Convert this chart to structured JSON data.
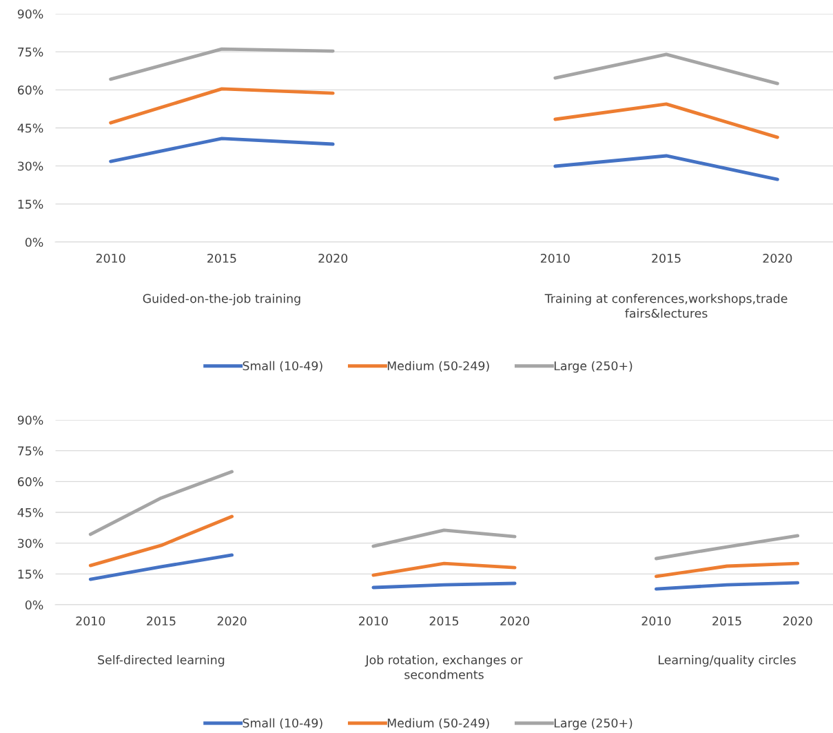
{
  "chart_data": [
    {
      "type": "line",
      "categories": [
        "2010",
        "2015",
        "2020",
        null,
        "2010",
        "2015",
        "2020"
      ],
      "series": [
        {
          "name": "Small (10-49)",
          "color": "#4472c4",
          "values": [
            31.8,
            40.8,
            38.6,
            null,
            29.9,
            34.0,
            24.7
          ]
        },
        {
          "name": "Medium (50-249)",
          "color": "#ed7d31",
          "values": [
            47.0,
            60.4,
            58.7,
            null,
            48.4,
            54.4,
            41.3
          ]
        },
        {
          "name": "Large (250+)",
          "color": "#a5a5a5",
          "values": [
            64.2,
            76.1,
            75.3,
            null,
            64.7,
            74.0,
            62.5
          ]
        }
      ],
      "ylim": [
        0,
        90
      ],
      "yticks": [
        {
          "value": 0,
          "label": "0%"
        },
        {
          "value": 15,
          "label": "15%"
        },
        {
          "value": 30,
          "label": "30%"
        },
        {
          "value": 45,
          "label": "45%"
        },
        {
          "value": 60,
          "label": "60%"
        },
        {
          "value": 75,
          "label": "75%"
        },
        {
          "value": 90,
          "label": "90%"
        }
      ],
      "annotations": [
        "Guided-on-the-job training",
        "Training at conferences,workshops,trade fairs&lectures"
      ],
      "grid": "y",
      "legend": "bottom",
      "marker": "none",
      "line_style": "solid"
    },
    {
      "type": "line",
      "categories": [
        "2010",
        "2015",
        "2020",
        null,
        "2010",
        "2015",
        "2020",
        null,
        "2010",
        "2015",
        "2020"
      ],
      "series": [
        {
          "name": "Small (10-49)",
          "color": "#4472c4",
          "values": [
            12.4,
            18.5,
            24.2,
            null,
            8.4,
            9.7,
            10.4,
            null,
            7.7,
            9.7,
            10.7
          ]
        },
        {
          "name": "Medium (50-249)",
          "color": "#ed7d31",
          "values": [
            19.1,
            28.9,
            43.0,
            null,
            14.4,
            20.1,
            18.1,
            null,
            13.8,
            18.8,
            20.1
          ]
        },
        {
          "name": "Large (250+)",
          "color": "#a5a5a5",
          "values": [
            34.3,
            52.0,
            64.8,
            null,
            28.5,
            36.3,
            33.2,
            null,
            22.5,
            28.2,
            33.6
          ]
        }
      ],
      "ylim": [
        0,
        90
      ],
      "yticks": [
        {
          "value": 0,
          "label": "0%"
        },
        {
          "value": 15,
          "label": "15%"
        },
        {
          "value": 30,
          "label": "30%"
        },
        {
          "value": 45,
          "label": "45%"
        },
        {
          "value": 60,
          "label": "60%"
        },
        {
          "value": 75,
          "label": "75%"
        },
        {
          "value": 90,
          "label": "90%"
        }
      ],
      "annotations": [
        "Self-directed learning",
        "Job rotation, exchanges or secondments",
        "Learning/quality circles"
      ],
      "grid": "y",
      "legend": "bottom",
      "marker": "none",
      "line_style": "solid"
    }
  ]
}
